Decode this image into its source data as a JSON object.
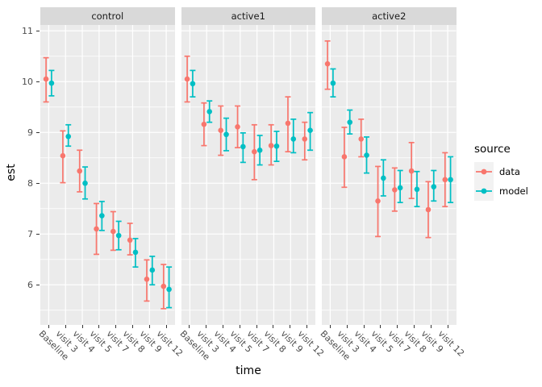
{
  "figure": {
    "colors": {
      "data": "#F8766D",
      "model": "#00BFC4",
      "panel_bg": "#EBEBEB",
      "strip_bg": "#D9D9D9",
      "grid": "#FFFFFF",
      "tick_text": "#4D4D4D"
    }
  },
  "legend": {
    "title": "source",
    "entries": [
      {
        "label": "data",
        "series": "data"
      },
      {
        "label": "model",
        "series": "model"
      }
    ]
  },
  "chart_data": {
    "type": "pointrange",
    "xlabel": "time",
    "ylabel": "est",
    "y_ticks": [
      6,
      7,
      8,
      9,
      10,
      11
    ],
    "y_minor_ticks": [
      5.5,
      6.5,
      7.5,
      8.5,
      9.5,
      10.5
    ],
    "ylim": [
      5.21,
      11.13
    ],
    "grid": "on",
    "legend_position": "right",
    "categories": [
      "Baseline",
      "visit 3",
      "visit 4",
      "visit 5",
      "visit 7",
      "visit 8",
      "visit 9",
      "visit 12"
    ],
    "facets": [
      {
        "label": "control",
        "series": [
          {
            "name": "data",
            "points": [
              [
                10.05,
                9.6,
                10.47
              ],
              [
                8.54,
                8.01,
                9.03
              ],
              [
                8.24,
                7.83,
                8.65
              ],
              [
                7.1,
                6.6,
                7.6
              ],
              [
                7.05,
                6.68,
                7.44
              ],
              [
                6.88,
                6.59,
                7.21
              ],
              [
                6.11,
                5.68,
                6.49
              ],
              [
                5.97,
                5.53,
                6.4
              ]
            ]
          },
          {
            "name": "model",
            "points": [
              [
                9.97,
                9.72,
                10.22
              ],
              [
                8.92,
                8.73,
                9.15
              ],
              [
                8.0,
                7.69,
                8.32
              ],
              [
                7.36,
                7.07,
                7.64
              ],
              [
                6.97,
                6.69,
                7.25
              ],
              [
                6.64,
                6.35,
                6.91
              ],
              [
                6.29,
                6.0,
                6.56
              ],
              [
                5.91,
                5.55,
                6.35
              ]
            ]
          }
        ]
      },
      {
        "label": "active1",
        "series": [
          {
            "name": "data",
            "points": [
              [
                10.05,
                9.6,
                10.5
              ],
              [
                9.16,
                8.74,
                9.58
              ],
              [
                9.04,
                8.55,
                9.52
              ],
              [
                9.11,
                8.7,
                9.52
              ],
              [
                8.62,
                8.07,
                9.15
              ],
              [
                8.74,
                8.36,
                9.15
              ],
              [
                9.18,
                8.62,
                9.7
              ],
              [
                8.87,
                8.46,
                9.2
              ]
            ]
          },
          {
            "name": "model",
            "points": [
              [
                9.96,
                9.7,
                10.22
              ],
              [
                9.41,
                9.2,
                9.62
              ],
              [
                8.96,
                8.64,
                9.28
              ],
              [
                8.72,
                8.41,
                8.99
              ],
              [
                8.65,
                8.36,
                8.94
              ],
              [
                8.73,
                8.43,
                9.02
              ],
              [
                8.87,
                8.6,
                9.26
              ],
              [
                9.04,
                8.65,
                9.39
              ]
            ]
          }
        ]
      },
      {
        "label": "active2",
        "series": [
          {
            "name": "data",
            "points": [
              [
                10.35,
                9.85,
                10.8
              ],
              [
                8.52,
                7.92,
                9.1
              ],
              [
                8.87,
                8.52,
                9.26
              ],
              [
                7.65,
                6.95,
                8.33
              ],
              [
                7.87,
                7.45,
                8.3
              ],
              [
                8.24,
                7.7,
                8.8
              ],
              [
                7.48,
                6.93,
                8.03
              ],
              [
                8.07,
                7.54,
                8.6
              ]
            ]
          },
          {
            "name": "model",
            "points": [
              [
                9.97,
                9.7,
                10.25
              ],
              [
                9.2,
                8.97,
                9.44
              ],
              [
                8.55,
                8.2,
                8.91
              ],
              [
                8.1,
                7.75,
                8.46
              ],
              [
                7.91,
                7.62,
                8.25
              ],
              [
                7.88,
                7.54,
                8.23
              ],
              [
                7.93,
                7.65,
                8.25
              ],
              [
                8.07,
                7.62,
                8.52
              ]
            ]
          }
        ]
      }
    ]
  }
}
